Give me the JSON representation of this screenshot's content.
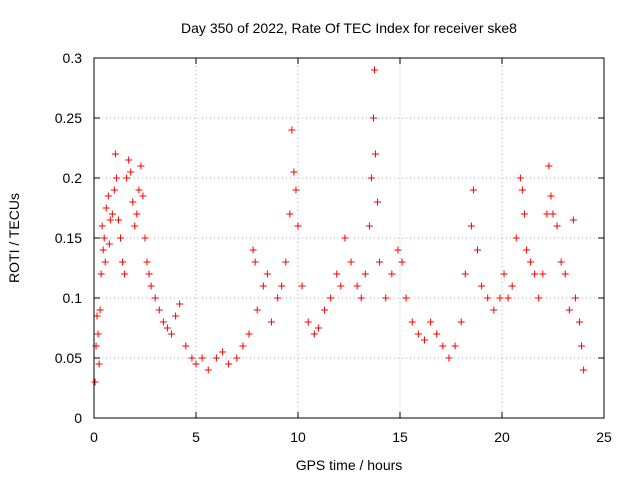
{
  "chart_data": {
    "type": "scatter",
    "title": "Day 350 of 2022, Rate Of TEC Index for receiver ske8",
    "xlabel": "GPS time / hours",
    "ylabel": "ROTI / TECUs",
    "xlim": [
      0,
      25
    ],
    "ylim": [
      0,
      0.3
    ],
    "xticks": [
      0,
      5,
      10,
      15,
      20,
      25
    ],
    "xtick_labels": [
      "0",
      "5",
      "10",
      "15",
      "20",
      "25"
    ],
    "yticks": [
      0,
      0.05,
      0.1,
      0.15,
      0.2,
      0.25,
      0.3
    ],
    "ytick_labels": [
      "0",
      "0.05",
      "0.1",
      "0.15",
      "0.2",
      "0.25",
      "0.3"
    ],
    "grid": true,
    "marker": "+",
    "color": "#ff0000",
    "points": [
      [
        0.05,
        0.03
      ],
      [
        0.1,
        0.06
      ],
      [
        0.15,
        0.085
      ],
      [
        0.2,
        0.07
      ],
      [
        0.25,
        0.045
      ],
      [
        0.3,
        0.09
      ],
      [
        0.35,
        0.12
      ],
      [
        0.4,
        0.16
      ],
      [
        0.45,
        0.14
      ],
      [
        0.5,
        0.15
      ],
      [
        0.55,
        0.13
      ],
      [
        0.6,
        0.175
      ],
      [
        0.7,
        0.185
      ],
      [
        0.75,
        0.145
      ],
      [
        0.8,
        0.165
      ],
      [
        0.9,
        0.17
      ],
      [
        1.0,
        0.19
      ],
      [
        1.05,
        0.22
      ],
      [
        1.1,
        0.2
      ],
      [
        1.2,
        0.165
      ],
      [
        1.3,
        0.15
      ],
      [
        1.4,
        0.13
      ],
      [
        1.5,
        0.12
      ],
      [
        1.6,
        0.2
      ],
      [
        1.7,
        0.215
      ],
      [
        1.8,
        0.205
      ],
      [
        1.9,
        0.18
      ],
      [
        2.0,
        0.16
      ],
      [
        2.1,
        0.17
      ],
      [
        2.2,
        0.19
      ],
      [
        2.3,
        0.21
      ],
      [
        2.4,
        0.185
      ],
      [
        2.5,
        0.15
      ],
      [
        2.6,
        0.13
      ],
      [
        2.7,
        0.12
      ],
      [
        2.8,
        0.11
      ],
      [
        3.0,
        0.1
      ],
      [
        3.2,
        0.09
      ],
      [
        3.4,
        0.08
      ],
      [
        3.6,
        0.075
      ],
      [
        3.8,
        0.07
      ],
      [
        4.0,
        0.085
      ],
      [
        4.2,
        0.095
      ],
      [
        4.5,
        0.06
      ],
      [
        4.8,
        0.05
      ],
      [
        5.0,
        0.045
      ],
      [
        5.3,
        0.05
      ],
      [
        5.6,
        0.04
      ],
      [
        6.0,
        0.05
      ],
      [
        6.3,
        0.055
      ],
      [
        6.6,
        0.045
      ],
      [
        7.0,
        0.05
      ],
      [
        7.3,
        0.06
      ],
      [
        7.6,
        0.07
      ],
      [
        7.8,
        0.14
      ],
      [
        7.9,
        0.13
      ],
      [
        8.0,
        0.09
      ],
      [
        8.3,
        0.11
      ],
      [
        8.5,
        0.12
      ],
      [
        8.7,
        0.08
      ],
      [
        9.0,
        0.1
      ],
      [
        9.2,
        0.11
      ],
      [
        9.4,
        0.13
      ],
      [
        9.6,
        0.17
      ],
      [
        9.7,
        0.24
      ],
      [
        9.8,
        0.205
      ],
      [
        9.9,
        0.19
      ],
      [
        10.0,
        0.16
      ],
      [
        10.2,
        0.11
      ],
      [
        10.5,
        0.08
      ],
      [
        10.8,
        0.07
      ],
      [
        11.0,
        0.075
      ],
      [
        11.3,
        0.09
      ],
      [
        11.6,
        0.1
      ],
      [
        11.9,
        0.12
      ],
      [
        12.1,
        0.11
      ],
      [
        12.3,
        0.15
      ],
      [
        12.6,
        0.13
      ],
      [
        12.9,
        0.11
      ],
      [
        13.1,
        0.1
      ],
      [
        13.3,
        0.12
      ],
      [
        13.5,
        0.16
      ],
      [
        13.6,
        0.2
      ],
      [
        13.7,
        0.25
      ],
      [
        13.75,
        0.29
      ],
      [
        13.8,
        0.22
      ],
      [
        13.9,
        0.18
      ],
      [
        14.0,
        0.13
      ],
      [
        14.3,
        0.1
      ],
      [
        14.6,
        0.12
      ],
      [
        14.9,
        0.14
      ],
      [
        15.1,
        0.13
      ],
      [
        15.3,
        0.1
      ],
      [
        15.6,
        0.08
      ],
      [
        15.9,
        0.07
      ],
      [
        16.2,
        0.065
      ],
      [
        16.5,
        0.08
      ],
      [
        16.8,
        0.07
      ],
      [
        17.1,
        0.06
      ],
      [
        17.4,
        0.05
      ],
      [
        17.7,
        0.06
      ],
      [
        18.0,
        0.08
      ],
      [
        18.2,
        0.12
      ],
      [
        18.5,
        0.16
      ],
      [
        18.6,
        0.19
      ],
      [
        18.8,
        0.14
      ],
      [
        19.0,
        0.11
      ],
      [
        19.3,
        0.1
      ],
      [
        19.6,
        0.09
      ],
      [
        19.9,
        0.1
      ],
      [
        20.1,
        0.12
      ],
      [
        20.3,
        0.1
      ],
      [
        20.5,
        0.11
      ],
      [
        20.7,
        0.15
      ],
      [
        20.9,
        0.2
      ],
      [
        21.0,
        0.19
      ],
      [
        21.1,
        0.17
      ],
      [
        21.2,
        0.14
      ],
      [
        21.4,
        0.13
      ],
      [
        21.6,
        0.12
      ],
      [
        21.8,
        0.1
      ],
      [
        22.0,
        0.12
      ],
      [
        22.2,
        0.17
      ],
      [
        22.3,
        0.21
      ],
      [
        22.4,
        0.185
      ],
      [
        22.5,
        0.17
      ],
      [
        22.7,
        0.16
      ],
      [
        22.9,
        0.13
      ],
      [
        23.1,
        0.12
      ],
      [
        23.3,
        0.09
      ],
      [
        23.5,
        0.165
      ],
      [
        23.6,
        0.1
      ],
      [
        23.8,
        0.08
      ],
      [
        23.9,
        0.06
      ],
      [
        24.0,
        0.04
      ]
    ]
  }
}
